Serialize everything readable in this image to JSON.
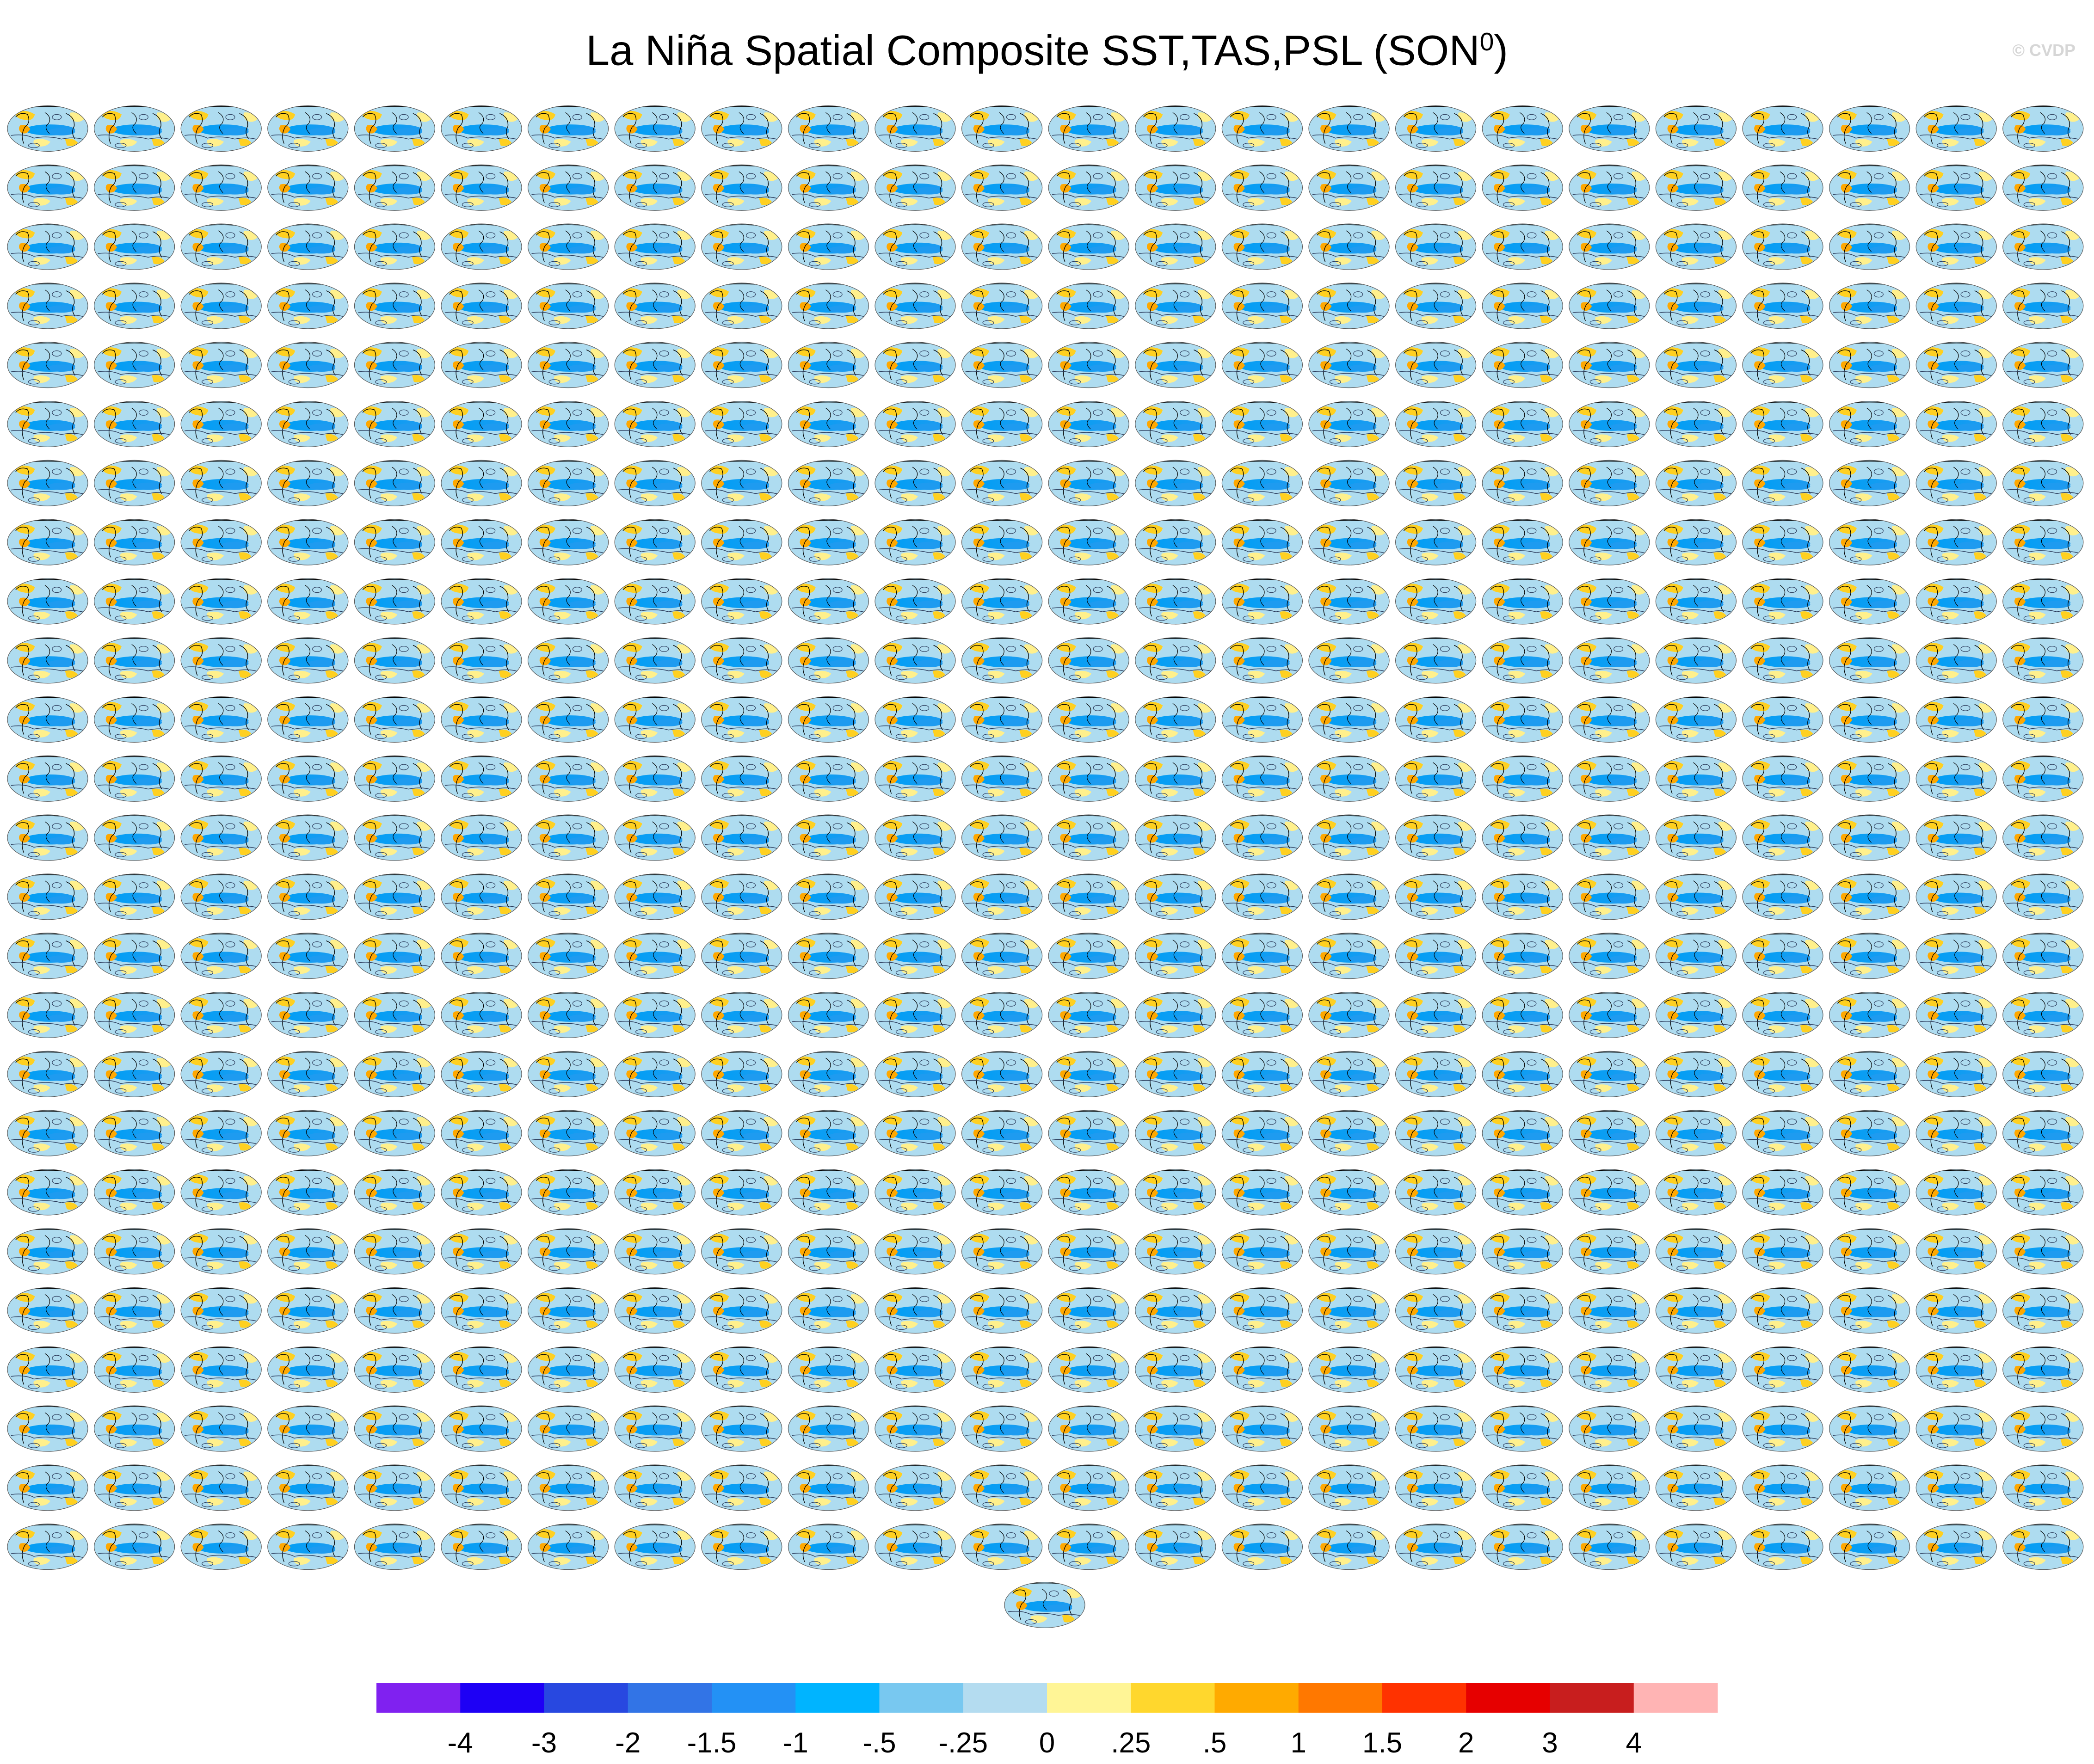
{
  "figure": {
    "title_main": "La Niña Spatial Composite SST,TAS,PSL (SON",
    "title_sup": "0",
    "title_end": ")",
    "watermark": "© CVDP"
  },
  "colors": {
    "ocean_base": "#aedcf0",
    "ocean_strong": "#1e9bf0",
    "ocean_deep": "#009ff5",
    "warm_light": "#fff08c",
    "warm_mid": "#ffd020",
    "warm_strong": "#ffa800",
    "land_line": "#000000",
    "contour_line": "#2a3a5a"
  },
  "chart_data": {
    "type": "heatmap",
    "title": "La Niña Spatial Composite SST,TAS,PSL (SON0)",
    "panel_rows": 25,
    "panel_cols": 24,
    "extra_panels": 1,
    "colorbar": {
      "tick_labels": [
        "-4",
        "-3",
        "-2",
        "-1.5",
        "-1",
        "-.5",
        "-.25",
        "0",
        ".25",
        ".5",
        "1",
        "1.5",
        "2",
        "3",
        "4"
      ],
      "colors": [
        "#8021f0",
        "#1e00f5",
        "#2848e0",
        "#3274e6",
        "#2391f5",
        "#00b4ff",
        "#78c8f0",
        "#b4dcf0",
        "#fff596",
        "#ffd72d",
        "#ffaa00",
        "#ff7800",
        "#ff3200",
        "#e60000",
        "#c81e1e",
        "#ffb4b4"
      ]
    }
  }
}
